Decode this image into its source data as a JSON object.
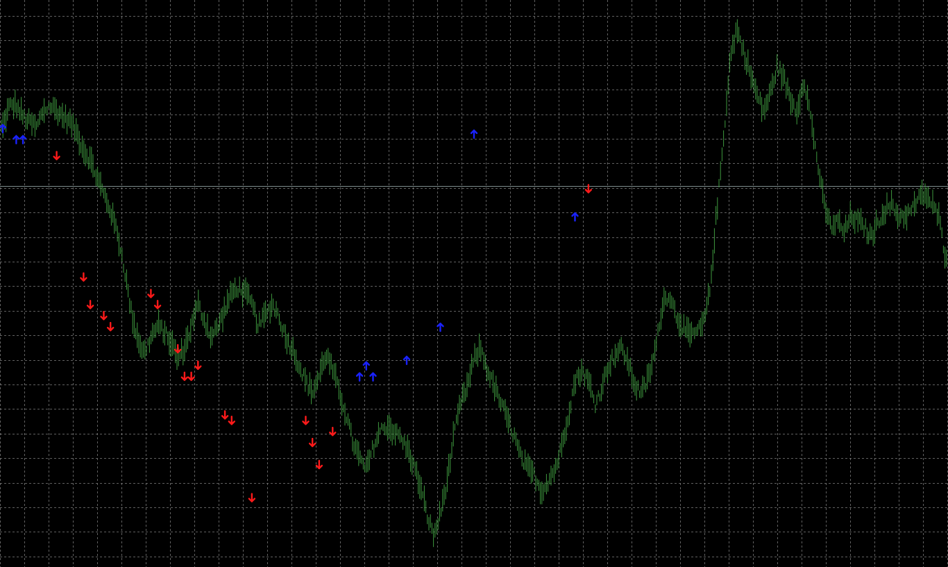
{
  "chart_data": {
    "type": "line",
    "style": "bar-ohlc",
    "background": "#000000",
    "grid": true,
    "grid_color": "#8a8a8a",
    "series_color": "#3f9a3f",
    "buy_arrow_color": "#1a22ff",
    "sell_arrow_color": "#ff1a1a",
    "price_line_color": "#7f8f8f",
    "legend": "none",
    "ylim": [
      0,
      1
    ],
    "current_price": 0.675,
    "series": [
      {
        "values": [
          0.78,
          0.82,
          0.82,
          0.8,
          0.79,
          0.78,
          0.81,
          0.82,
          0.81,
          0.8,
          0.79,
          0.77,
          0.74,
          0.72,
          0.69,
          0.66,
          0.63,
          0.59,
          0.53,
          0.45,
          0.4,
          0.37,
          0.4,
          0.42,
          0.41,
          0.39,
          0.36,
          0.38,
          0.42,
          0.46,
          0.43,
          0.4,
          0.42,
          0.45,
          0.48,
          0.49,
          0.48,
          0.46,
          0.42,
          0.44,
          0.46,
          0.44,
          0.4,
          0.38,
          0.35,
          0.32,
          0.3,
          0.33,
          0.37,
          0.34,
          0.3,
          0.26,
          0.21,
          0.18,
          0.16,
          0.2,
          0.23,
          0.24,
          0.23,
          0.22,
          0.2,
          0.17,
          0.13,
          0.08,
          0.04,
          0.08,
          0.14,
          0.22,
          0.28,
          0.31,
          0.36,
          0.38,
          0.34,
          0.31,
          0.28,
          0.25,
          0.22,
          0.18,
          0.16,
          0.15,
          0.12,
          0.14,
          0.16,
          0.2,
          0.26,
          0.32,
          0.34,
          0.32,
          0.28,
          0.31,
          0.35,
          0.37,
          0.38,
          0.35,
          0.31,
          0.3,
          0.33,
          0.38,
          0.46,
          0.48,
          0.44,
          0.42,
          0.4,
          0.41,
          0.42,
          0.48,
          0.62,
          0.75,
          0.9,
          0.96,
          0.92,
          0.88,
          0.84,
          0.81,
          0.84,
          0.89,
          0.87,
          0.83,
          0.81,
          0.87,
          0.8,
          0.72,
          0.64,
          0.6,
          0.61,
          0.59,
          0.62,
          0.61,
          0.6,
          0.58,
          0.61,
          0.63,
          0.64,
          0.62,
          0.62,
          0.63,
          0.65,
          0.66,
          0.64,
          0.62,
          0.55
        ]
      }
    ],
    "signals": {
      "buy": [
        [
          0,
          0.78
        ],
        [
          2,
          0.76
        ],
        [
          3,
          0.76
        ],
        [
          53,
          0.33
        ],
        [
          54,
          0.35
        ],
        [
          55,
          0.33
        ],
        [
          60,
          0.36
        ],
        [
          65,
          0.42
        ],
        [
          70,
          0.77
        ],
        [
          85,
          0.62
        ]
      ],
      "sell": [
        [
          8,
          0.73
        ],
        [
          12,
          0.51
        ],
        [
          13,
          0.46
        ],
        [
          15,
          0.44
        ],
        [
          16,
          0.42
        ],
        [
          22,
          0.48
        ],
        [
          23,
          0.46
        ],
        [
          26,
          0.38
        ],
        [
          27,
          0.33
        ],
        [
          28,
          0.33
        ],
        [
          29,
          0.35
        ],
        [
          33,
          0.26
        ],
        [
          34,
          0.25
        ],
        [
          37,
          0.11
        ],
        [
          45,
          0.25
        ],
        [
          46,
          0.21
        ],
        [
          47,
          0.17
        ],
        [
          49,
          0.23
        ],
        [
          87,
          0.67
        ]
      ]
    }
  }
}
